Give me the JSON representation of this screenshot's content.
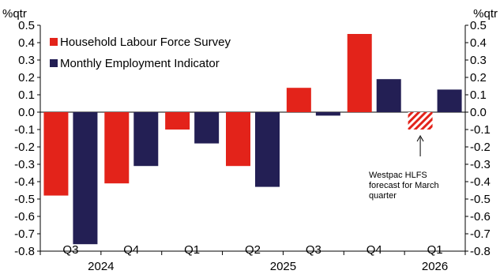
{
  "chart_data": {
    "type": "bar",
    "y_unit_left": "%qtr",
    "y_unit_right": "%qtr",
    "ylim": [
      -0.8,
      0.5
    ],
    "yticks": [
      0.5,
      0.4,
      0.3,
      0.2,
      0.1,
      0.0,
      -0.1,
      -0.2,
      -0.3,
      -0.4,
      -0.5,
      -0.6,
      -0.7,
      -0.8
    ],
    "ytick_labels": [
      "0.5",
      "0.4",
      "0.3",
      "0.2",
      "0.1",
      "0.0",
      "-0.1",
      "-0.2",
      "-0.3",
      "-0.4",
      "-0.5",
      "-0.6",
      "-0.7",
      "-0.8"
    ],
    "categories": [
      "Q3",
      "Q4",
      "Q1",
      "Q2",
      "Q3",
      "Q4",
      "Q1"
    ],
    "year_labels": [
      {
        "label": "2024",
        "span": [
          0,
          1
        ]
      },
      {
        "label": "2025",
        "span": [
          2,
          5
        ]
      },
      {
        "label": "2026",
        "span": [
          6,
          6
        ]
      }
    ],
    "series": [
      {
        "name": "Household Labour Force Survey",
        "color": "#e3231a",
        "values": [
          -0.48,
          -0.41,
          -0.1,
          -0.31,
          0.14,
          0.45,
          -0.1
        ],
        "forecast_index": 6
      },
      {
        "name": "Monthly Employment Indicator",
        "color": "#231f54",
        "values": [
          -0.76,
          -0.31,
          -0.18,
          -0.43,
          -0.02,
          0.19,
          0.13
        ]
      }
    ],
    "legend_position": "top-left",
    "grid": false,
    "annotation": {
      "lines": [
        "Westpac HLFS",
        "forecast for March",
        "quarter"
      ],
      "points_to": "forecast bar"
    }
  }
}
